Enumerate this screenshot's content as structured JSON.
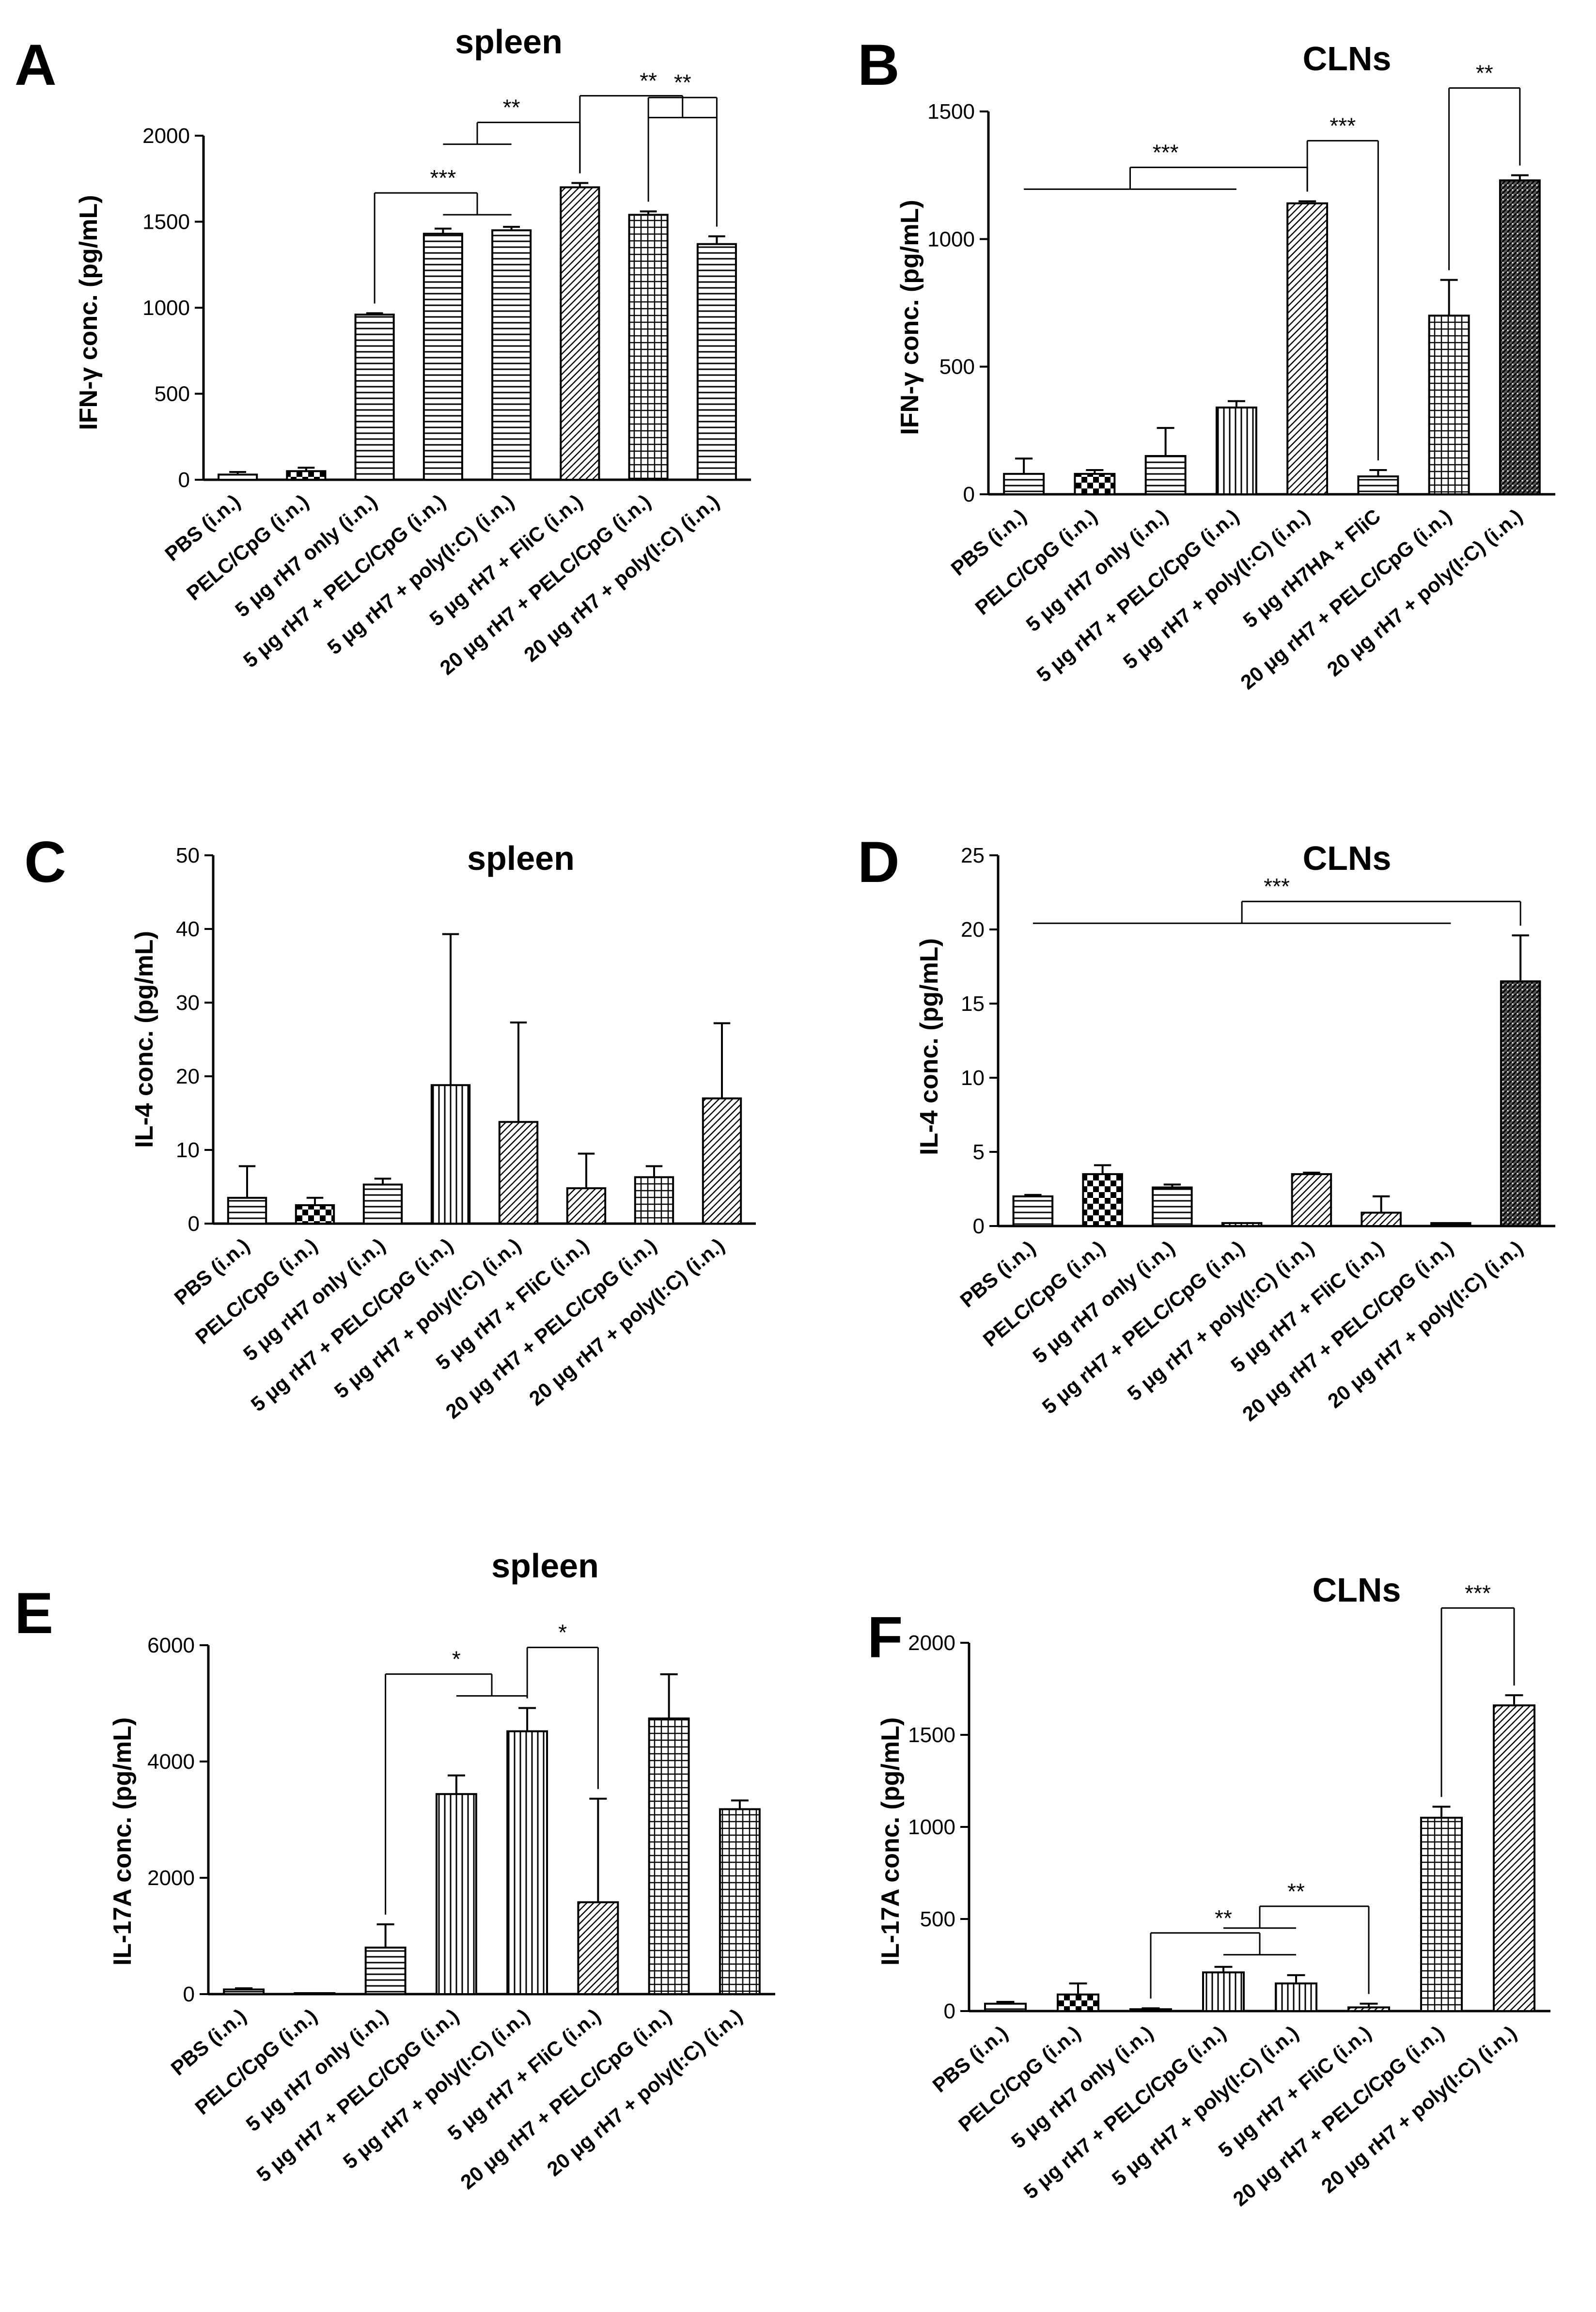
{
  "figure": {
    "colors": {
      "axis": "#000000",
      "bar_fill": "#ffffff",
      "pattern": "#000000"
    }
  },
  "chart_data": [
    {
      "panel": "A",
      "title": "spleen",
      "type": "bar",
      "ylabel": "IFN-γ conc. (pg/mL)",
      "ylim": [
        0,
        2000
      ],
      "yticks": [
        0,
        500,
        1000,
        1500,
        2000
      ],
      "categories": [
        "PBS (i.n.)",
        "PELC/CpG (i.n.)",
        "5 μg rH7 only (i.n.)",
        "5 μg rH7 + PELC/CpG (i.n.)",
        "5 μg rH7 + poly(I:C) (i.n.)",
        "5 μg rH7 + FliC (i.n.)",
        "20 μg rH7 + PELC/CpG (i.n.)",
        "20 μg rH7 + poly(I:C) (i.n.)"
      ],
      "values": [
        30,
        50,
        960,
        1430,
        1450,
        1700,
        1540,
        1370
      ],
      "errors": [
        15,
        20,
        8,
        30,
        20,
        25,
        20,
        45
      ],
      "patterns": [
        "hatch-h",
        "check",
        "hatch-h",
        "hatch-h",
        "hatch-h",
        "diag",
        "grid",
        "hatch-h"
      ],
      "significance": [
        {
          "label": "***",
          "from": 2,
          "to": [
            3,
            4
          ]
        },
        {
          "label": "**",
          "from": 5,
          "to": [
            3,
            4
          ]
        },
        {
          "label": "**",
          "from": 5,
          "to": [
            6,
            7
          ]
        },
        {
          "label": "**",
          "from": 6,
          "to": [
            7
          ]
        }
      ]
    },
    {
      "panel": "B",
      "title": "CLNs",
      "type": "bar",
      "ylabel": "IFN-γ conc. (pg/mL)",
      "ylim": [
        0,
        1500
      ],
      "yticks": [
        0,
        500,
        1000,
        1500
      ],
      "categories": [
        "PBS (i.n.)",
        "PELC/CpG (i.n.)",
        "5 μg rH7 only (i.n.)",
        "5 μg rH7 + PELC/CpG (i.n.)",
        "5 μg rH7 + poly(I:C) (i.n.)",
        "5 μg rH7HA + FliC",
        "20 μg rH7 + PELC/CpG (i.n.)",
        "20 μg rH7 + poly(I:C) (i.n.)"
      ],
      "values": [
        80,
        80,
        150,
        340,
        1140,
        70,
        700,
        1230
      ],
      "errors": [
        60,
        15,
        110,
        25,
        8,
        25,
        140,
        20
      ],
      "patterns": [
        "hatch-h",
        "check",
        "hatch-h",
        "vert",
        "diag",
        "hatch-h",
        "grid",
        "dense"
      ],
      "significance": [
        {
          "label": "***",
          "from": 4,
          "to": [
            0,
            1,
            2,
            3
          ]
        },
        {
          "label": "***",
          "from": 4,
          "to": [
            5
          ]
        },
        {
          "label": "**",
          "from": 6,
          "to": [
            7
          ]
        }
      ]
    },
    {
      "panel": "C",
      "title": "spleen",
      "type": "bar",
      "ylabel": "IL-4 conc. (pg/mL)",
      "ylim": [
        0,
        50
      ],
      "yticks": [
        0,
        10,
        20,
        30,
        40,
        50
      ],
      "categories": [
        "PBS (i.n.)",
        "PELC/CpG (i.n.)",
        "5 μg rH7 only (i.n.)",
        "5 μg rH7 + PELC/CpG (i.n.)",
        "5 μg rH7 + poly(I:C) (i.n.)",
        "5 μg rH7 + FliC (i.n.)",
        "20 μg rH7 + PELC/CpG (i.n.)",
        "20 μg rH7 + poly(I:C) (i.n.)"
      ],
      "values": [
        3.5,
        2.5,
        5.3,
        18.8,
        13.8,
        4.8,
        6.3,
        17.0
      ],
      "errors": [
        4.3,
        1.0,
        0.8,
        20.5,
        13.5,
        4.7,
        1.5,
        10.2
      ],
      "patterns": [
        "hatch-h",
        "check",
        "hatch-h",
        "vert",
        "diag",
        "diag",
        "grid",
        "diag"
      ],
      "significance": []
    },
    {
      "panel": "D",
      "title": "CLNs",
      "type": "bar",
      "ylabel": "IL-4 conc. (pg/mL)",
      "ylim": [
        0,
        25
      ],
      "yticks": [
        0,
        5,
        10,
        15,
        20,
        25
      ],
      "categories": [
        "PBS (i.n.)",
        "PELC/CpG (i.n.)",
        "5 μg rH7 only (i.n.)",
        "5 μg rH7 + PELC/CpG (i.n.)",
        "5 μg rH7 + poly(I:C) (i.n.)",
        "5 μg rH7 + FliC (i.n.)",
        "20 μg rH7 + PELC/CpG (i.n.)",
        "20 μg rH7 + poly(I:C) (i.n.)"
      ],
      "values": [
        2.0,
        3.5,
        2.6,
        0.2,
        3.5,
        0.9,
        0.2,
        16.5
      ],
      "errors": [
        0.1,
        0.6,
        0.2,
        0,
        0.1,
        1.1,
        0,
        3.1
      ],
      "patterns": [
        "hatch-h",
        "check",
        "hatch-h",
        "vert",
        "diag",
        "diag",
        "grid",
        "dense"
      ],
      "significance": [
        {
          "label": "***",
          "from": 7,
          "to": [
            0,
            1,
            2,
            3,
            4,
            5,
            6
          ]
        }
      ]
    },
    {
      "panel": "E",
      "title": "spleen",
      "type": "bar",
      "ylabel": "IL-17A conc. (pg/mL)",
      "ylim": [
        0,
        6000
      ],
      "yticks": [
        0,
        2000,
        4000,
        6000
      ],
      "categories": [
        "PBS (i.n.)",
        "PELC/CpG (i.n.)",
        "5 μg rH7 only (i.n.)",
        "5 μg rH7 + PELC/CpG (i.n.)",
        "5 μg rH7 + poly(I:C) (i.n.)",
        "5 μg rH7 + FliC (i.n.)",
        "20 μg rH7 + PELC/CpG (i.n.)",
        "20 μg rH7 + poly(I:C) (i.n.)"
      ],
      "values": [
        80,
        0,
        800,
        3440,
        4520,
        1580,
        4740,
        3180
      ],
      "errors": [
        20,
        0,
        400,
        320,
        400,
        1780,
        760,
        150
      ],
      "patterns": [
        "hatch-h",
        "check",
        "hatch-h",
        "vert",
        "vert",
        "diag",
        "grid",
        "grid"
      ],
      "significance": [
        {
          "label": "*",
          "from": 2,
          "to": [
            3,
            4
          ]
        },
        {
          "label": "*",
          "from": 4,
          "to": [
            5
          ]
        }
      ]
    },
    {
      "panel": "F",
      "title": "CLNs",
      "type": "bar",
      "ylabel": "IL-17A conc. (pg/mL)",
      "ylim": [
        0,
        2000
      ],
      "yticks": [
        0,
        500,
        1000,
        1500,
        2000
      ],
      "categories": [
        "PBS (i.n.)",
        "PELC/CpG (i.n.)",
        "5 μg rH7 only (i.n.)",
        "5 μg rH7 + PELC/CpG (i.n.)",
        "5 μg rH7 + poly(I:C) (i.n.)",
        "5 μg rH7 + FliC (i.n.)",
        "20 μg rH7 + PELC/CpG (i.n.)",
        "20 μg rH7 + poly(I:C) (i.n.)"
      ],
      "values": [
        40,
        90,
        10,
        210,
        150,
        20,
        1050,
        1660
      ],
      "errors": [
        10,
        60,
        5,
        30,
        45,
        20,
        60,
        55
      ],
      "patterns": [
        "hatch-h",
        "check",
        "hatch-h",
        "vert",
        "vert",
        "diag",
        "grid",
        "diag"
      ],
      "significance": [
        {
          "label": "**",
          "from": 2,
          "to": [
            3,
            4
          ]
        },
        {
          "label": "**",
          "from": 5,
          "to": [
            3,
            4
          ]
        },
        {
          "label": "***",
          "from": 6,
          "to": [
            7
          ]
        }
      ]
    }
  ]
}
